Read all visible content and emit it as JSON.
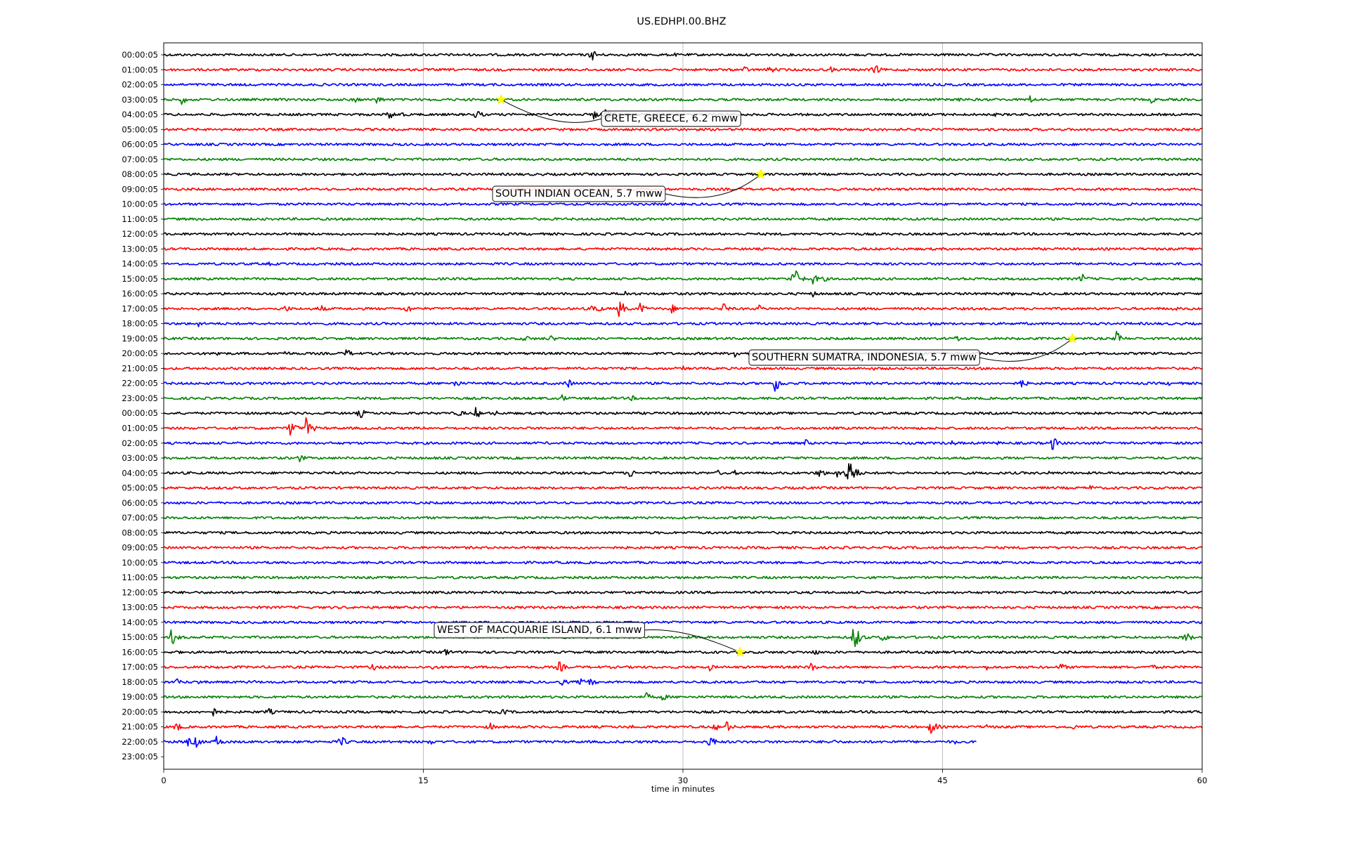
{
  "chart_data": {
    "type": "line",
    "title": "US.EDHPI.00.BHZ",
    "xlabel": "time in minutes",
    "ylabel": "",
    "xlim": [
      0,
      60
    ],
    "x_ticks": [
      0,
      15,
      30,
      45,
      60
    ],
    "grid": "vertical",
    "colors": [
      "#000000",
      "#ff0000",
      "#0000ff",
      "#008000"
    ],
    "rows": [
      "00:00:05",
      "01:00:05",
      "02:00:05",
      "03:00:05",
      "04:00:05",
      "05:00:05",
      "06:00:05",
      "07:00:05",
      "08:00:05",
      "09:00:05",
      "10:00:05",
      "11:00:05",
      "12:00:05",
      "13:00:05",
      "14:00:05",
      "15:00:05",
      "16:00:05",
      "17:00:05",
      "18:00:05",
      "19:00:05",
      "20:00:05",
      "21:00:05",
      "22:00:05",
      "23:00:05",
      "00:00:05",
      "01:00:05",
      "02:00:05",
      "03:00:05",
      "04:00:05",
      "05:00:05",
      "06:00:05",
      "07:00:05",
      "08:00:05",
      "09:00:05",
      "10:00:05",
      "11:00:05",
      "12:00:05",
      "13:00:05",
      "14:00:05",
      "15:00:05",
      "16:00:05",
      "17:00:05",
      "18:00:05",
      "19:00:05",
      "20:00:05",
      "21:00:05",
      "22:00:05",
      "23:00:05"
    ],
    "last_trace_end_minute": 47,
    "bursts": [
      {
        "row": 0,
        "minute": 24.7,
        "amp": 10
      },
      {
        "row": 0,
        "minute": 29.5,
        "amp": 3
      },
      {
        "row": 1,
        "minute": 33.5,
        "amp": 6
      },
      {
        "row": 1,
        "minute": 35,
        "amp": 7
      },
      {
        "row": 1,
        "minute": 38.5,
        "amp": 5
      },
      {
        "row": 1,
        "minute": 41,
        "amp": 10
      },
      {
        "row": 2,
        "minute": 9,
        "amp": 3
      },
      {
        "row": 2,
        "minute": 59.5,
        "amp": 3
      },
      {
        "row": 3,
        "minute": 1,
        "amp": 8
      },
      {
        "row": 3,
        "minute": 11,
        "amp": 6
      },
      {
        "row": 3,
        "minute": 12.3,
        "amp": 7
      },
      {
        "row": 3,
        "minute": 46,
        "amp": 6
      },
      {
        "row": 3,
        "minute": 50,
        "amp": 7
      },
      {
        "row": 3,
        "minute": 57,
        "amp": 6
      },
      {
        "row": 4,
        "minute": 13,
        "amp": 8
      },
      {
        "row": 4,
        "minute": 13.6,
        "amp": 6
      },
      {
        "row": 4,
        "minute": 18,
        "amp": 9
      },
      {
        "row": 4,
        "minute": 24.8,
        "amp": 8
      },
      {
        "row": 4,
        "minute": 25.5,
        "amp": 12
      },
      {
        "row": 4,
        "minute": 48,
        "amp": 3
      },
      {
        "row": 14,
        "minute": 6,
        "amp": 4
      },
      {
        "row": 15,
        "minute": 36.3,
        "amp": 24
      },
      {
        "row": 15,
        "minute": 37.5,
        "amp": 8
      },
      {
        "row": 15,
        "minute": 38,
        "amp": 6
      },
      {
        "row": 15,
        "minute": 53,
        "amp": 9
      },
      {
        "row": 16,
        "minute": 26.5,
        "amp": 7
      },
      {
        "row": 16,
        "minute": 37.5,
        "amp": 5
      },
      {
        "row": 16,
        "minute": 49,
        "amp": 3
      },
      {
        "row": 17,
        "minute": 7,
        "amp": 6
      },
      {
        "row": 17,
        "minute": 9,
        "amp": 7
      },
      {
        "row": 17,
        "minute": 14,
        "amp": 8
      },
      {
        "row": 17,
        "minute": 24.8,
        "amp": 12
      },
      {
        "row": 17,
        "minute": 26.3,
        "amp": 14
      },
      {
        "row": 17,
        "minute": 27.5,
        "amp": 9
      },
      {
        "row": 17,
        "minute": 29.3,
        "amp": 8
      },
      {
        "row": 17,
        "minute": 32.3,
        "amp": 9
      },
      {
        "row": 17,
        "minute": 34.3,
        "amp": 7
      },
      {
        "row": 17,
        "minute": 58.5,
        "amp": 4
      },
      {
        "row": 18,
        "minute": 2,
        "amp": 5
      },
      {
        "row": 18,
        "minute": 42.5,
        "amp": 3
      },
      {
        "row": 18,
        "minute": 44.3,
        "amp": 5
      },
      {
        "row": 19,
        "minute": 20.8,
        "amp": 7
      },
      {
        "row": 19,
        "minute": 22.3,
        "amp": 6
      },
      {
        "row": 19,
        "minute": 45.8,
        "amp": 7
      },
      {
        "row": 19,
        "minute": 55,
        "amp": 12
      },
      {
        "row": 20,
        "minute": 3,
        "amp": 7
      },
      {
        "row": 20,
        "minute": 7,
        "amp": 5
      },
      {
        "row": 20,
        "minute": 10.5,
        "amp": 8
      },
      {
        "row": 20,
        "minute": 33,
        "amp": 7
      },
      {
        "row": 21,
        "minute": 30,
        "amp": 4
      },
      {
        "row": 21,
        "minute": 41,
        "amp": 3
      },
      {
        "row": 22,
        "minute": 16.8,
        "amp": 7
      },
      {
        "row": 22,
        "minute": 23.3,
        "amp": 8
      },
      {
        "row": 22,
        "minute": 35.3,
        "amp": 14
      },
      {
        "row": 22,
        "minute": 49.5,
        "amp": 8
      },
      {
        "row": 22,
        "minute": 58,
        "amp": 4
      },
      {
        "row": 23,
        "minute": 23,
        "amp": 6
      },
      {
        "row": 23,
        "minute": 27,
        "amp": 5
      },
      {
        "row": 24,
        "minute": 11.3,
        "amp": 9
      },
      {
        "row": 24,
        "minute": 17,
        "amp": 7
      },
      {
        "row": 24,
        "minute": 18,
        "amp": 9
      },
      {
        "row": 24,
        "minute": 19,
        "amp": 6
      },
      {
        "row": 25,
        "minute": 7.3,
        "amp": 14
      },
      {
        "row": 25,
        "minute": 8.2,
        "amp": 16
      },
      {
        "row": 26,
        "minute": 37,
        "amp": 7
      },
      {
        "row": 26,
        "minute": 45.5,
        "amp": 5
      },
      {
        "row": 26,
        "minute": 48,
        "amp": 5
      },
      {
        "row": 26,
        "minute": 51.3,
        "amp": 12
      },
      {
        "row": 27,
        "minute": 7.8,
        "amp": 7
      },
      {
        "row": 27,
        "minute": 24.5,
        "amp": 4
      },
      {
        "row": 28,
        "minute": 26.8,
        "amp": 10
      },
      {
        "row": 28,
        "minute": 32,
        "amp": 5
      },
      {
        "row": 28,
        "minute": 33,
        "amp": 4
      },
      {
        "row": 28,
        "minute": 37.8,
        "amp": 9
      },
      {
        "row": 28,
        "minute": 38.8,
        "amp": 9
      },
      {
        "row": 28,
        "minute": 39.5,
        "amp": 30
      },
      {
        "row": 28,
        "minute": 51,
        "amp": 4
      },
      {
        "row": 29,
        "minute": 53.5,
        "amp": 5
      },
      {
        "row": 31,
        "minute": 40,
        "amp": 3
      },
      {
        "row": 39,
        "minute": 0.4,
        "amp": 14
      },
      {
        "row": 39,
        "minute": 39.8,
        "amp": 24
      },
      {
        "row": 39,
        "minute": 41.5,
        "amp": 8
      },
      {
        "row": 39,
        "minute": 59,
        "amp": 10
      },
      {
        "row": 40,
        "minute": 0.6,
        "amp": 5
      },
      {
        "row": 40,
        "minute": 16.2,
        "amp": 8
      },
      {
        "row": 40,
        "minute": 37.5,
        "amp": 6
      },
      {
        "row": 41,
        "minute": 12,
        "amp": 7
      },
      {
        "row": 41,
        "minute": 15.5,
        "amp": 5
      },
      {
        "row": 41,
        "minute": 22.8,
        "amp": 10
      },
      {
        "row": 41,
        "minute": 31.5,
        "amp": 6
      },
      {
        "row": 41,
        "minute": 37.3,
        "amp": 9
      },
      {
        "row": 41,
        "minute": 47.5,
        "amp": 5
      },
      {
        "row": 41,
        "minute": 51.8,
        "amp": 7
      },
      {
        "row": 41,
        "minute": 57,
        "amp": 6
      },
      {
        "row": 42,
        "minute": 0.7,
        "amp": 6
      },
      {
        "row": 42,
        "minute": 2,
        "amp": 4
      },
      {
        "row": 42,
        "minute": 5,
        "amp": 5
      },
      {
        "row": 42,
        "minute": 23,
        "amp": 6
      },
      {
        "row": 42,
        "minute": 24,
        "amp": 7
      },
      {
        "row": 42,
        "minute": 24.6,
        "amp": 7
      },
      {
        "row": 43,
        "minute": 27.8,
        "amp": 8
      },
      {
        "row": 43,
        "minute": 28.8,
        "amp": 6
      },
      {
        "row": 44,
        "minute": 2.8,
        "amp": 8
      },
      {
        "row": 44,
        "minute": 6,
        "amp": 7
      },
      {
        "row": 44,
        "minute": 19.5,
        "amp": 7
      },
      {
        "row": 45,
        "minute": 0.7,
        "amp": 8
      },
      {
        "row": 45,
        "minute": 18.8,
        "amp": 7
      },
      {
        "row": 45,
        "minute": 27,
        "amp": 4
      },
      {
        "row": 45,
        "minute": 31.8,
        "amp": 7
      },
      {
        "row": 45,
        "minute": 32.5,
        "amp": 9
      },
      {
        "row": 45,
        "minute": 44.3,
        "amp": 12
      },
      {
        "row": 45,
        "minute": 47.5,
        "amp": 5
      },
      {
        "row": 45,
        "minute": 52.5,
        "amp": 5
      },
      {
        "row": 46,
        "minute": 1.3,
        "amp": 8
      },
      {
        "row": 46,
        "minute": 1.8,
        "amp": 10
      },
      {
        "row": 46,
        "minute": 3,
        "amp": 10
      },
      {
        "row": 46,
        "minute": 10.2,
        "amp": 10
      },
      {
        "row": 46,
        "minute": 15.3,
        "amp": 6
      },
      {
        "row": 46,
        "minute": 31.5,
        "amp": 12
      },
      {
        "row": 46,
        "minute": 38.5,
        "amp": 6
      },
      {
        "row": 46,
        "minute": 42,
        "amp": 4
      },
      {
        "row": 46,
        "minute": 45.6,
        "amp": 5
      }
    ],
    "events": [
      {
        "label": "CRETE, GREECE, 6.2 mww",
        "row": 3,
        "minute": 19.5
      },
      {
        "label": "SOUTH INDIAN OCEAN, 5.7 mww",
        "row": 8,
        "minute": 34.5
      },
      {
        "label": "SOUTHERN SUMATRA, INDONESIA, 5.7 mww",
        "row": 19,
        "minute": 52.5
      },
      {
        "label": "WEST OF MACQUARIE ISLAND, 6.1 mww",
        "row": 40,
        "minute": 33.3
      }
    ]
  }
}
